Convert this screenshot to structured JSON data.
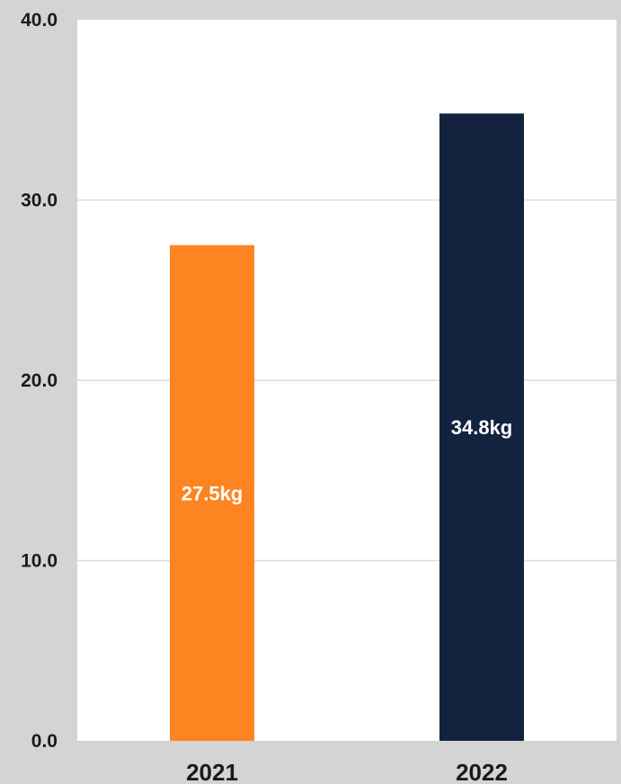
{
  "chart_data": {
    "type": "bar",
    "categories": [
      "2021",
      "2022"
    ],
    "values": [
      27.5,
      34.8
    ],
    "data_labels": [
      "27.5kg",
      "34.8kg"
    ],
    "y_ticks": [
      "0.0",
      "10.0",
      "20.0",
      "30.0",
      "40.0"
    ],
    "ylim": [
      0,
      40
    ],
    "grid": true,
    "legend": "none",
    "title": "",
    "xlabel": "",
    "ylabel": ""
  },
  "colors": {
    "background": "#d4d4d4",
    "plot_area": "#ffffff",
    "gridline": "#dcdcdc",
    "bars": [
      "#fd8420",
      "#13223f"
    ]
  }
}
